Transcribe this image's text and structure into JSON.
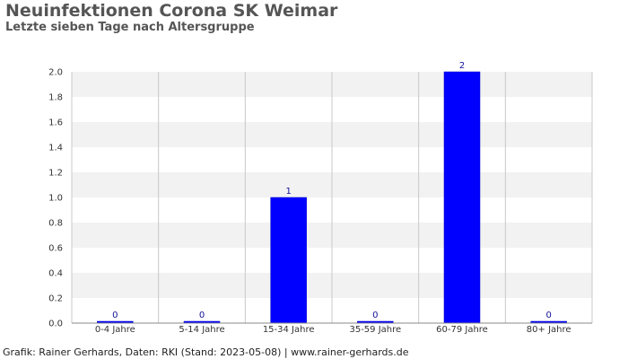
{
  "header": {
    "title": "Neuinfektionen Corona SK Weimar",
    "subtitle": "Letzte sieben Tage nach Altersgruppe"
  },
  "footer": {
    "credit": "Grafik: Rainer Gerhards, Daten: RKI (Stand: 2023-05-08) | www.rainer-gerhards.de"
  },
  "colors": {
    "bar": "#0000ff",
    "band": "#f2f2f2",
    "grid": "#c8c8c8",
    "axis": "#888888"
  },
  "chart_data": {
    "type": "bar",
    "title": "Neuinfektionen Corona SK Weimar",
    "subtitle": "Letzte sieben Tage nach Altersgruppe",
    "categories": [
      "0-4 Jahre",
      "5-14 Jahre",
      "15-34 Jahre",
      "35-59 Jahre",
      "60-79 Jahre",
      "80+ Jahre"
    ],
    "values": [
      0,
      0,
      1,
      0,
      2,
      0
    ],
    "data_labels": [
      "0",
      "0",
      "1",
      "0",
      "2",
      "0"
    ],
    "ylim": [
      0,
      2.0
    ],
    "yticks": [
      "0.0",
      "0.2",
      "0.4",
      "0.6",
      "0.8",
      "1.0",
      "1.2",
      "1.4",
      "1.6",
      "1.8",
      "2.0"
    ],
    "grid": true,
    "legend": "none"
  }
}
